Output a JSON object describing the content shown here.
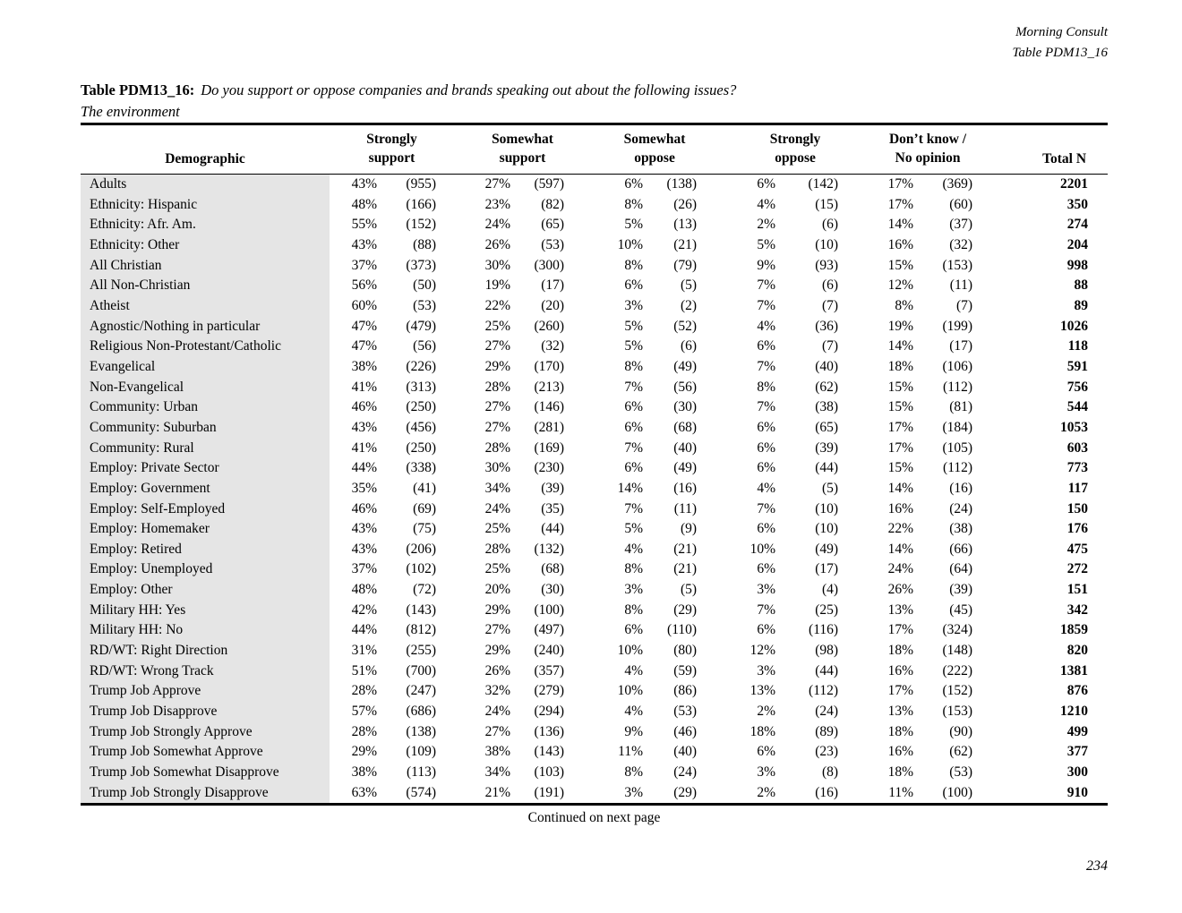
{
  "meta": {
    "source": "Morning Consult",
    "table_ref": "Table PDM13_16"
  },
  "title": {
    "prefix": "Table PDM13_16:",
    "question": "Do you support or oppose companies and brands speaking out about the following issues?",
    "subject": "The environment"
  },
  "table": {
    "demographic_header": "Demographic",
    "total_header": "Total N",
    "group_headers": [
      {
        "line1": "Strongly",
        "line2": "support"
      },
      {
        "line1": "Somewhat",
        "line2": "support"
      },
      {
        "line1": "Somewhat",
        "line2": "oppose"
      },
      {
        "line1": "Strongly",
        "line2": "oppose"
      },
      {
        "line1": "Don’t know /",
        "line2": "No opinion"
      }
    ],
    "rows": [
      {
        "label": "Adults",
        "cells": [
          "43%",
          "(955)",
          "27%",
          "(597)",
          "6%",
          "(138)",
          "6%",
          "(142)",
          "17%",
          "(369)"
        ],
        "total": "2201"
      },
      {
        "label": "Ethnicity: Hispanic",
        "cells": [
          "48%",
          "(166)",
          "23%",
          "(82)",
          "8%",
          "(26)",
          "4%",
          "(15)",
          "17%",
          "(60)"
        ],
        "total": "350"
      },
      {
        "label": "Ethnicity: Afr. Am.",
        "cells": [
          "55%",
          "(152)",
          "24%",
          "(65)",
          "5%",
          "(13)",
          "2%",
          "(6)",
          "14%",
          "(37)"
        ],
        "total": "274"
      },
      {
        "label": "Ethnicity: Other",
        "cells": [
          "43%",
          "(88)",
          "26%",
          "(53)",
          "10%",
          "(21)",
          "5%",
          "(10)",
          "16%",
          "(32)"
        ],
        "total": "204"
      },
      {
        "label": "All Christian",
        "cells": [
          "37%",
          "(373)",
          "30%",
          "(300)",
          "8%",
          "(79)",
          "9%",
          "(93)",
          "15%",
          "(153)"
        ],
        "total": "998"
      },
      {
        "label": "All Non-Christian",
        "cells": [
          "56%",
          "(50)",
          "19%",
          "(17)",
          "6%",
          "(5)",
          "7%",
          "(6)",
          "12%",
          "(11)"
        ],
        "total": "88"
      },
      {
        "label": "Atheist",
        "cells": [
          "60%",
          "(53)",
          "22%",
          "(20)",
          "3%",
          "(2)",
          "7%",
          "(7)",
          "8%",
          "(7)"
        ],
        "total": "89"
      },
      {
        "label": "Agnostic/Nothing in particular",
        "cells": [
          "47%",
          "(479)",
          "25%",
          "(260)",
          "5%",
          "(52)",
          "4%",
          "(36)",
          "19%",
          "(199)"
        ],
        "total": "1026"
      },
      {
        "label": "Religious Non-Protestant/Catholic",
        "cells": [
          "47%",
          "(56)",
          "27%",
          "(32)",
          "5%",
          "(6)",
          "6%",
          "(7)",
          "14%",
          "(17)"
        ],
        "total": "118"
      },
      {
        "label": "Evangelical",
        "cells": [
          "38%",
          "(226)",
          "29%",
          "(170)",
          "8%",
          "(49)",
          "7%",
          "(40)",
          "18%",
          "(106)"
        ],
        "total": "591"
      },
      {
        "label": "Non-Evangelical",
        "cells": [
          "41%",
          "(313)",
          "28%",
          "(213)",
          "7%",
          "(56)",
          "8%",
          "(62)",
          "15%",
          "(112)"
        ],
        "total": "756"
      },
      {
        "label": "Community: Urban",
        "cells": [
          "46%",
          "(250)",
          "27%",
          "(146)",
          "6%",
          "(30)",
          "7%",
          "(38)",
          "15%",
          "(81)"
        ],
        "total": "544"
      },
      {
        "label": "Community: Suburban",
        "cells": [
          "43%",
          "(456)",
          "27%",
          "(281)",
          "6%",
          "(68)",
          "6%",
          "(65)",
          "17%",
          "(184)"
        ],
        "total": "1053"
      },
      {
        "label": "Community: Rural",
        "cells": [
          "41%",
          "(250)",
          "28%",
          "(169)",
          "7%",
          "(40)",
          "6%",
          "(39)",
          "17%",
          "(105)"
        ],
        "total": "603"
      },
      {
        "label": "Employ: Private Sector",
        "cells": [
          "44%",
          "(338)",
          "30%",
          "(230)",
          "6%",
          "(49)",
          "6%",
          "(44)",
          "15%",
          "(112)"
        ],
        "total": "773"
      },
      {
        "label": "Employ: Government",
        "cells": [
          "35%",
          "(41)",
          "34%",
          "(39)",
          "14%",
          "(16)",
          "4%",
          "(5)",
          "14%",
          "(16)"
        ],
        "total": "117"
      },
      {
        "label": "Employ: Self-Employed",
        "cells": [
          "46%",
          "(69)",
          "24%",
          "(35)",
          "7%",
          "(11)",
          "7%",
          "(10)",
          "16%",
          "(24)"
        ],
        "total": "150"
      },
      {
        "label": "Employ: Homemaker",
        "cells": [
          "43%",
          "(75)",
          "25%",
          "(44)",
          "5%",
          "(9)",
          "6%",
          "(10)",
          "22%",
          "(38)"
        ],
        "total": "176"
      },
      {
        "label": "Employ: Retired",
        "cells": [
          "43%",
          "(206)",
          "28%",
          "(132)",
          "4%",
          "(21)",
          "10%",
          "(49)",
          "14%",
          "(66)"
        ],
        "total": "475"
      },
      {
        "label": "Employ: Unemployed",
        "cells": [
          "37%",
          "(102)",
          "25%",
          "(68)",
          "8%",
          "(21)",
          "6%",
          "(17)",
          "24%",
          "(64)"
        ],
        "total": "272"
      },
      {
        "label": "Employ: Other",
        "cells": [
          "48%",
          "(72)",
          "20%",
          "(30)",
          "3%",
          "(5)",
          "3%",
          "(4)",
          "26%",
          "(39)"
        ],
        "total": "151"
      },
      {
        "label": "Military HH: Yes",
        "cells": [
          "42%",
          "(143)",
          "29%",
          "(100)",
          "8%",
          "(29)",
          "7%",
          "(25)",
          "13%",
          "(45)"
        ],
        "total": "342"
      },
      {
        "label": "Military HH: No",
        "cells": [
          "44%",
          "(812)",
          "27%",
          "(497)",
          "6%",
          "(110)",
          "6%",
          "(116)",
          "17%",
          "(324)"
        ],
        "total": "1859"
      },
      {
        "label": "RD/WT: Right Direction",
        "cells": [
          "31%",
          "(255)",
          "29%",
          "(240)",
          "10%",
          "(80)",
          "12%",
          "(98)",
          "18%",
          "(148)"
        ],
        "total": "820"
      },
      {
        "label": "RD/WT: Wrong Track",
        "cells": [
          "51%",
          "(700)",
          "26%",
          "(357)",
          "4%",
          "(59)",
          "3%",
          "(44)",
          "16%",
          "(222)"
        ],
        "total": "1381"
      },
      {
        "label": "Trump Job Approve",
        "cells": [
          "28%",
          "(247)",
          "32%",
          "(279)",
          "10%",
          "(86)",
          "13%",
          "(112)",
          "17%",
          "(152)"
        ],
        "total": "876"
      },
      {
        "label": "Trump Job Disapprove",
        "cells": [
          "57%",
          "(686)",
          "24%",
          "(294)",
          "4%",
          "(53)",
          "2%",
          "(24)",
          "13%",
          "(153)"
        ],
        "total": "1210"
      },
      {
        "label": "Trump Job Strongly Approve",
        "cells": [
          "28%",
          "(138)",
          "27%",
          "(136)",
          "9%",
          "(46)",
          "18%",
          "(89)",
          "18%",
          "(90)"
        ],
        "total": "499"
      },
      {
        "label": "Trump Job Somewhat Approve",
        "cells": [
          "29%",
          "(109)",
          "38%",
          "(143)",
          "11%",
          "(40)",
          "6%",
          "(23)",
          "16%",
          "(62)"
        ],
        "total": "377"
      },
      {
        "label": "Trump Job Somewhat Disapprove",
        "cells": [
          "38%",
          "(113)",
          "34%",
          "(103)",
          "8%",
          "(24)",
          "3%",
          "(8)",
          "18%",
          "(53)"
        ],
        "total": "300"
      },
      {
        "label": "Trump Job Strongly Disapprove",
        "cells": [
          "63%",
          "(574)",
          "21%",
          "(191)",
          "3%",
          "(29)",
          "2%",
          "(16)",
          "11%",
          "(100)"
        ],
        "total": "910"
      }
    ]
  },
  "footer": {
    "continued": "Continued on next page",
    "page_number": "234"
  },
  "colors": {
    "row_label_bg": "#e5e5e5",
    "text": "#000000"
  }
}
